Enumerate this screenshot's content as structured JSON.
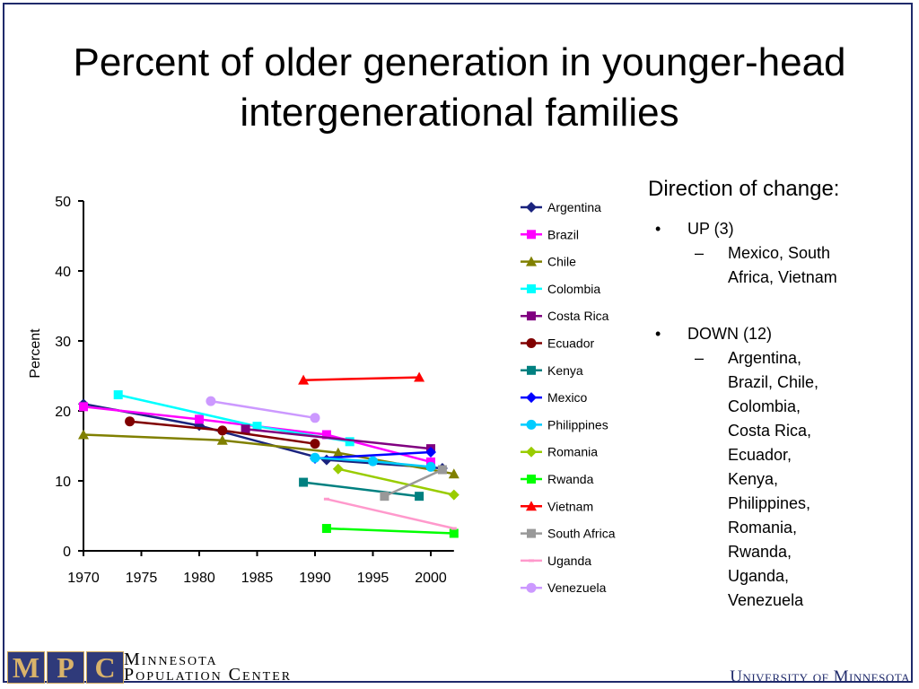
{
  "title_lines": [
    "Percent of older generation in younger-head",
    "intergenerational families"
  ],
  "panel": {
    "heading": "Direction of change:",
    "up_label": "UP (3)",
    "up_countries": [
      "Mexico, South",
      "Africa, Vietnam"
    ],
    "down_label": "DOWN (12)",
    "down_countries": [
      "Argentina,",
      "Brazil, Chile,",
      "Colombia,",
      "Costa Rica,",
      "Ecuador,",
      "Kenya,",
      "Philippines,",
      "Romania,",
      "Rwanda,",
      "Uganda,",
      "Venezuela"
    ]
  },
  "footer": {
    "mpc_letters": [
      "M",
      "P",
      "C"
    ],
    "mpc_line1": "Minnesota",
    "mpc_line2": "Population Center",
    "university": "University of Minnesota"
  },
  "chart_data": {
    "type": "line",
    "title": "",
    "xlabel": "",
    "ylabel": "Percent",
    "xlim": [
      1970,
      2002
    ],
    "ylim": [
      0,
      50
    ],
    "xticks": [
      1970,
      1975,
      1980,
      1985,
      1990,
      1995,
      2000
    ],
    "yticks": [
      0,
      10,
      20,
      30,
      40,
      50
    ],
    "grid": false,
    "legend_position": "right",
    "series": [
      {
        "name": "Argentina",
        "color": "#1a237e",
        "marker": "diamond",
        "points": [
          [
            1970,
            21.0
          ],
          [
            1980,
            17.9
          ],
          [
            1991,
            13.0
          ],
          [
            2001,
            11.8
          ]
        ]
      },
      {
        "name": "Brazil",
        "color": "#ff00ff",
        "marker": "square",
        "points": [
          [
            1970,
            20.6
          ],
          [
            1980,
            18.8
          ],
          [
            1991,
            16.6
          ],
          [
            2000,
            12.7
          ]
        ]
      },
      {
        "name": "Chile",
        "color": "#808000",
        "marker": "triangle",
        "points": [
          [
            1970,
            16.6
          ],
          [
            1982,
            15.8
          ],
          [
            1992,
            14.0
          ],
          [
            2002,
            11.0
          ]
        ]
      },
      {
        "name": "Colombia",
        "color": "#00ffff",
        "marker": "square",
        "points": [
          [
            1973,
            22.3
          ],
          [
            1985,
            17.8
          ],
          [
            1993,
            15.6
          ]
        ]
      },
      {
        "name": "Costa Rica",
        "color": "#800080",
        "marker": "square",
        "points": [
          [
            1984,
            17.4
          ],
          [
            2000,
            14.6
          ]
        ]
      },
      {
        "name": "Ecuador",
        "color": "#800000",
        "marker": "circle",
        "points": [
          [
            1974,
            18.5
          ],
          [
            1982,
            17.2
          ],
          [
            1990,
            15.3
          ]
        ]
      },
      {
        "name": "Kenya",
        "color": "#008080",
        "marker": "square",
        "points": [
          [
            1989,
            9.8
          ],
          [
            1999,
            7.8
          ]
        ]
      },
      {
        "name": "Mexico",
        "color": "#0000ff",
        "marker": "diamond",
        "points": [
          [
            1990,
            13.2
          ],
          [
            2000,
            14.1
          ]
        ]
      },
      {
        "name": "Philippines",
        "color": "#00ccff",
        "marker": "circle",
        "points": [
          [
            1990,
            13.3
          ],
          [
            1995,
            12.8
          ],
          [
            2000,
            12.0
          ]
        ]
      },
      {
        "name": "Romania",
        "color": "#99cc00",
        "marker": "diamond",
        "points": [
          [
            1992,
            11.7
          ],
          [
            2002,
            8.0
          ]
        ]
      },
      {
        "name": "Rwanda",
        "color": "#00ff00",
        "marker": "square",
        "points": [
          [
            1991,
            3.2
          ],
          [
            2002,
            2.5
          ]
        ]
      },
      {
        "name": "Vietnam",
        "color": "#ff0000",
        "marker": "triangle",
        "points": [
          [
            1989,
            24.4
          ],
          [
            1999,
            24.8
          ]
        ]
      },
      {
        "name": "South Africa",
        "color": "#999999",
        "marker": "square",
        "points": [
          [
            1996,
            7.8
          ],
          [
            2001,
            11.6
          ]
        ]
      },
      {
        "name": "Uganda",
        "color": "#ff99cc",
        "marker": "dash",
        "points": [
          [
            1991,
            7.4
          ],
          [
            2002,
            3.2
          ]
        ]
      },
      {
        "name": "Venezuela",
        "color": "#cc99ff",
        "marker": "circle",
        "points": [
          [
            1981,
            21.4
          ],
          [
            1990,
            19.0
          ]
        ]
      }
    ]
  }
}
